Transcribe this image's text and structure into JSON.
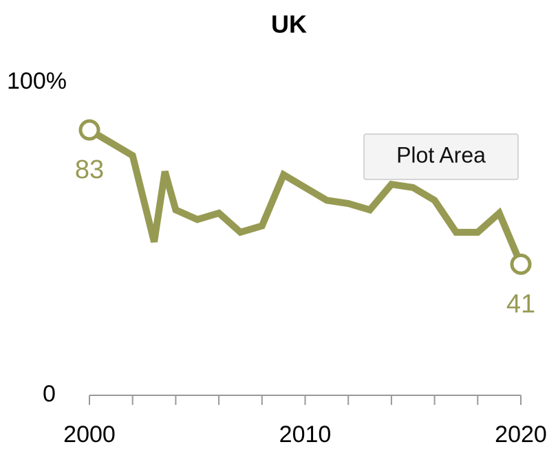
{
  "chart_data": {
    "type": "line",
    "title": "UK",
    "x": [
      2000,
      2002,
      2003,
      2003.5,
      2004,
      2005,
      2006,
      2007,
      2008,
      2009,
      2010,
      2011,
      2012,
      2013,
      2014,
      2015,
      2016,
      2017,
      2018,
      2019,
      2020
    ],
    "series": [
      {
        "name": "UK",
        "color": "#979a52",
        "values": [
          83,
          75,
          48,
          70,
          58,
          55,
          57,
          51,
          53,
          69,
          65,
          61,
          60,
          58,
          66,
          65,
          61,
          51,
          51,
          57,
          41
        ],
        "value_labels": [
          "83",
          null,
          null,
          null,
          null,
          null,
          null,
          null,
          null,
          null,
          null,
          null,
          null,
          null,
          null,
          null,
          null,
          null,
          null,
          null,
          "41"
        ]
      }
    ],
    "xlim": [
      2000,
      2020
    ],
    "xticks": [
      2000,
      2010,
      2020
    ],
    "xminorticks": [
      2000,
      2002,
      2004,
      2006,
      2008,
      2010,
      2012,
      2014,
      2016,
      2018,
      2020
    ],
    "ylim": [
      0,
      100
    ],
    "yticks": [
      0,
      {
        "value": 100,
        "label": "100%"
      }
    ],
    "tooltip": "Plot Area"
  }
}
